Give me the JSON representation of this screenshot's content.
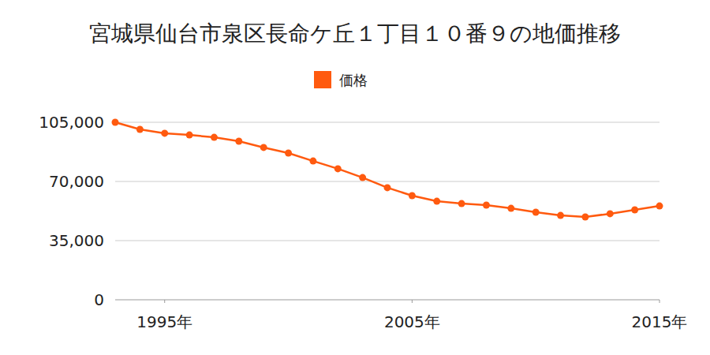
{
  "chart_data": {
    "type": "line",
    "title": "宮城県仙台市泉区長命ケ丘１丁目１０番９の地価推移",
    "x": [
      1993,
      1994,
      1995,
      1996,
      1997,
      1998,
      1999,
      2000,
      2001,
      2002,
      2003,
      2004,
      2005,
      2006,
      2007,
      2008,
      2009,
      2010,
      2011,
      2012,
      2013,
      2014,
      2015
    ],
    "series": [
      {
        "name": "価格",
        "color": "#ff5a0f",
        "marker": "circle",
        "values": [
          105000,
          100800,
          98500,
          97500,
          96100,
          93800,
          90100,
          86800,
          82100,
          77500,
          72300,
          66300,
          61600,
          58300,
          56900,
          56000,
          54100,
          51800,
          49900,
          49000,
          50900,
          53200,
          55500
        ]
      }
    ],
    "xlim": [
      1993,
      2015
    ],
    "xticks": [
      {
        "value": 1995,
        "label": "1995年"
      },
      {
        "value": 2005,
        "label": "2005年"
      },
      {
        "value": 2015,
        "label": "2015年"
      }
    ],
    "ylim": [
      0,
      105000
    ],
    "yticks": [
      0,
      {
        "value": 35000,
        "label": "35,000"
      },
      {
        "value": 70000,
        "label": "70,000"
      },
      {
        "value": 105000,
        "label": "105,000"
      }
    ],
    "grid": true,
    "legend": "top"
  }
}
